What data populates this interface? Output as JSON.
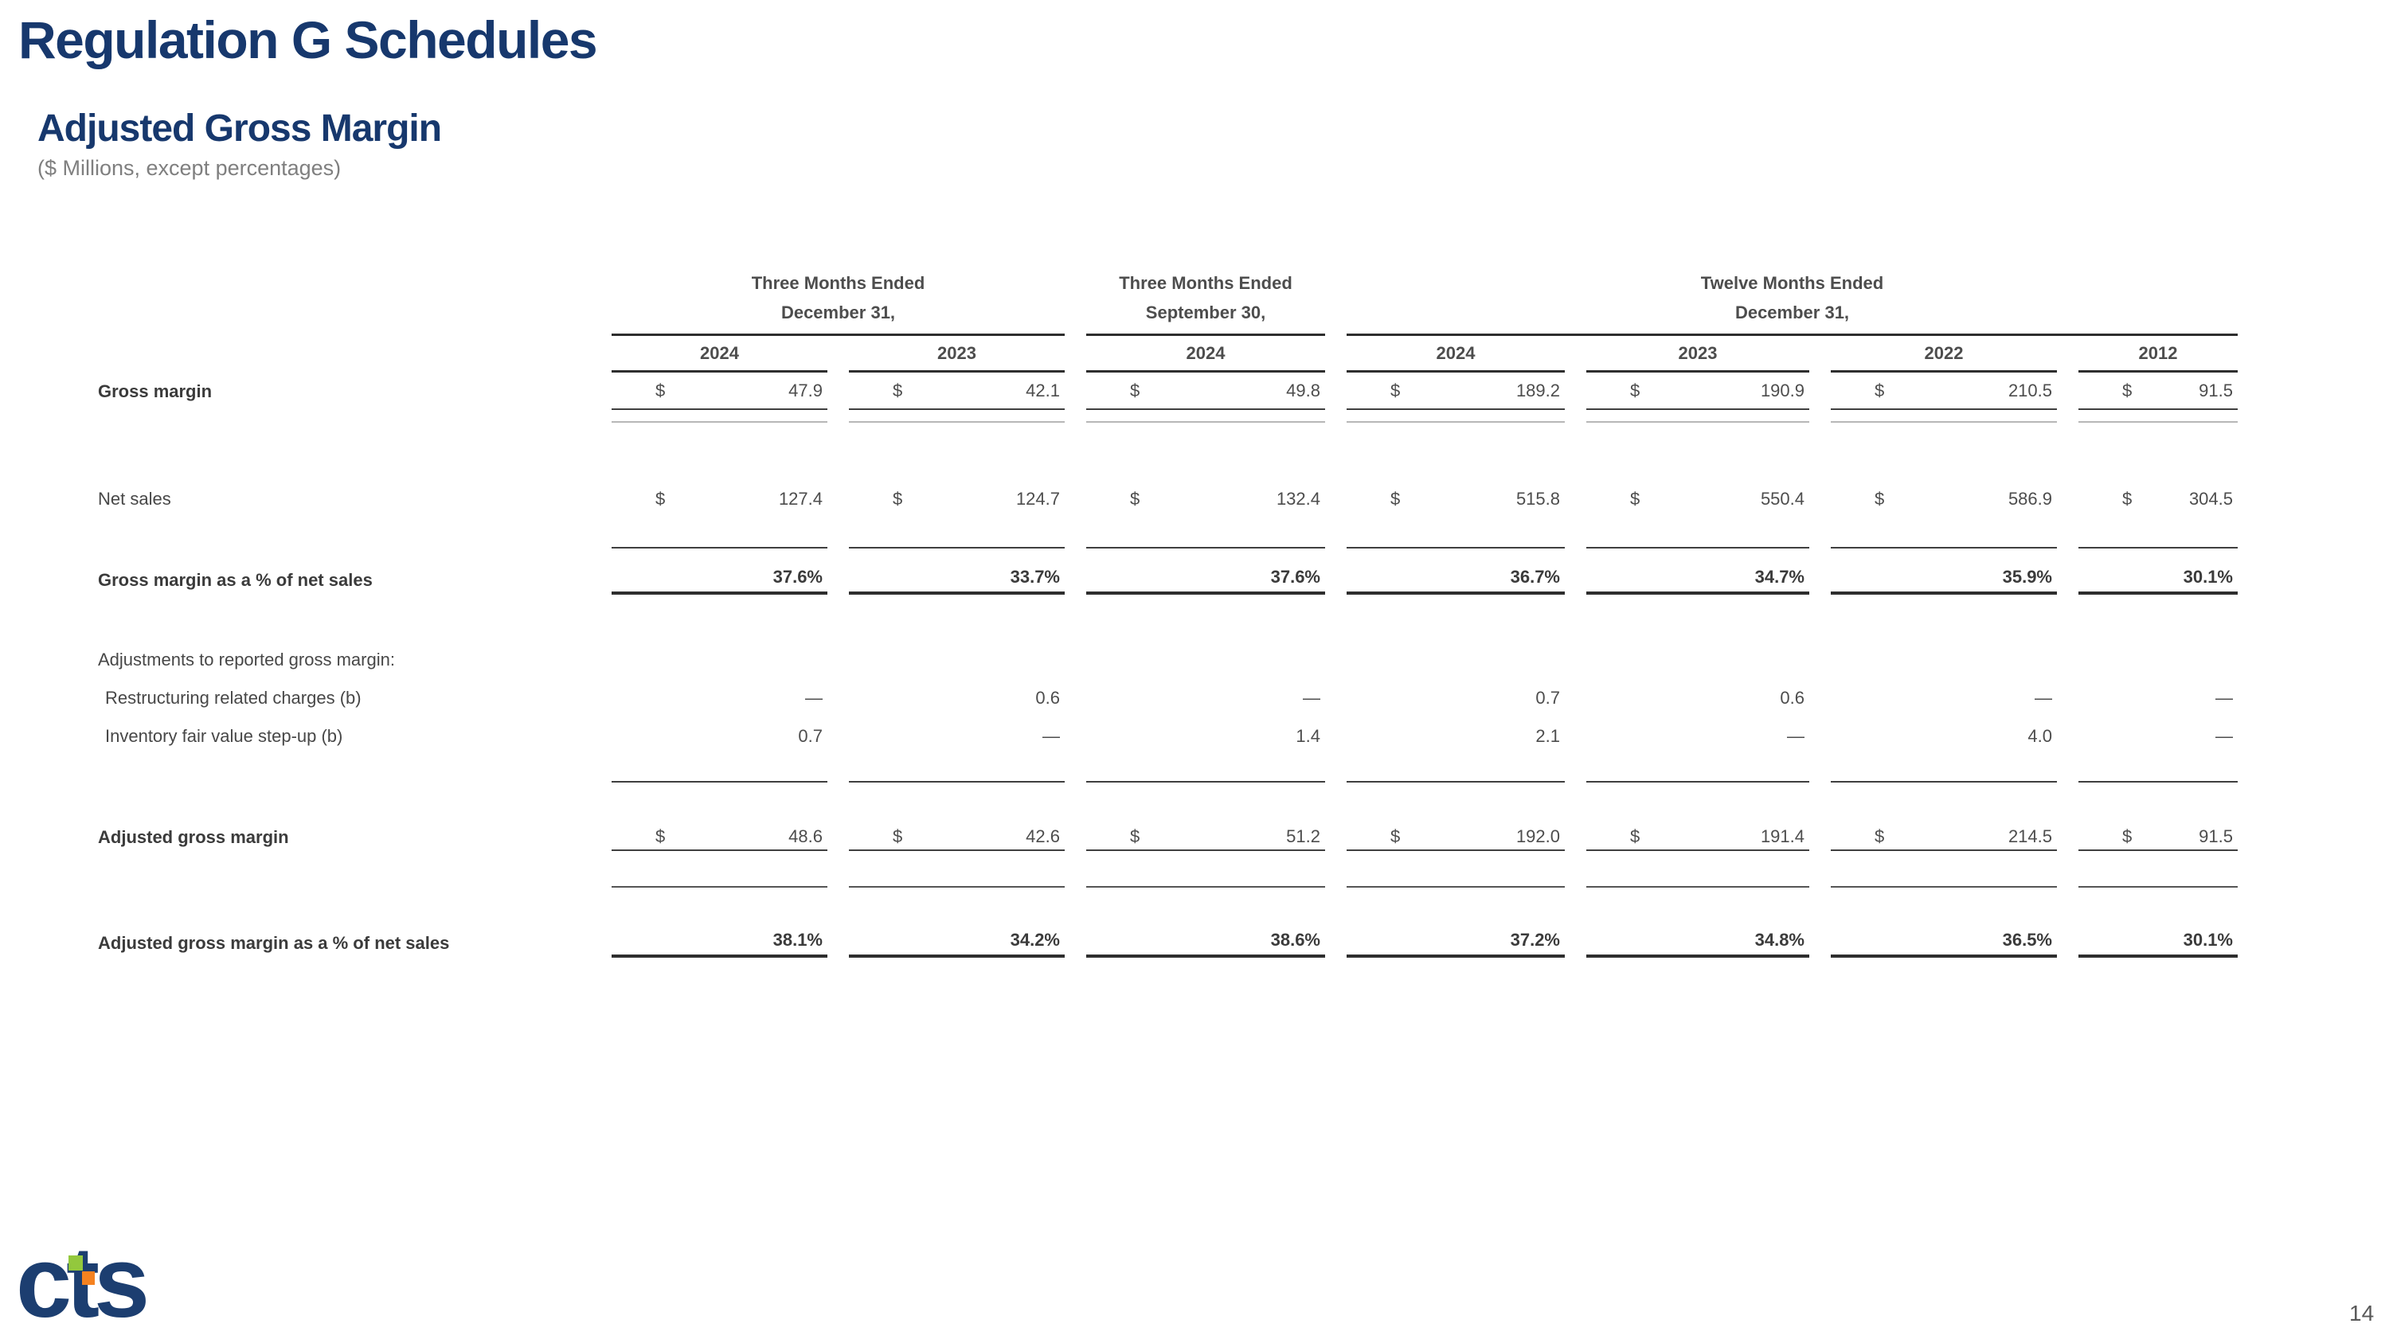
{
  "page": {
    "title": "Regulation G Schedules",
    "subtitle": "Adjusted Gross Margin",
    "note": "($ Millions, except percentages)",
    "page_number": "14",
    "logo_text": "cts",
    "logo_colors": {
      "navy": "#1c3e70",
      "green": "#93c83d",
      "orange": "#f58220"
    },
    "accent_color": "#17386d"
  },
  "table": {
    "groups": [
      {
        "line1": "Three Months Ended",
        "line2": "December 31,"
      },
      {
        "line1": "Three Months Ended",
        "line2": "September 30,"
      },
      {
        "line1": "Twelve Months Ended",
        "line2": "December 31,"
      }
    ],
    "years": [
      "2024",
      "2023",
      "2024",
      "2024",
      "2023",
      "2022",
      "2012"
    ],
    "rows": [
      {
        "label": "Gross margin",
        "dollar": "$",
        "values": [
          "47.9",
          "42.1",
          "49.8",
          "189.2",
          "190.9",
          "210.5",
          "91.5"
        ]
      },
      {
        "label": "Net sales",
        "dollar": "$",
        "values": [
          "127.4",
          "124.7",
          "132.4",
          "515.8",
          "550.4",
          "586.9",
          "304.5"
        ]
      },
      {
        "label": "Gross margin as a % of net sales",
        "values": [
          "37.6%",
          "33.7%",
          "37.6%",
          "36.7%",
          "34.7%",
          "35.9%",
          "30.1%"
        ]
      },
      {
        "label": "Adjustments to reported gross margin:",
        "values": [
          "",
          "",
          "",
          "",
          "",
          "",
          ""
        ]
      },
      {
        "label": "Restructuring related charges (b)",
        "values": [
          "—",
          "0.6",
          "—",
          "0.7",
          "0.6",
          "—",
          "—"
        ]
      },
      {
        "label": "Inventory fair value step-up (b)",
        "values": [
          "0.7",
          "—",
          "1.4",
          "2.1",
          "—",
          "4.0",
          "—"
        ]
      },
      {
        "label": "Adjusted gross margin",
        "dollar": "$",
        "values": [
          "48.6",
          "42.6",
          "51.2",
          "192.0",
          "191.4",
          "214.5",
          "91.5"
        ]
      },
      {
        "label": "Adjusted gross margin as a % of net sales",
        "values": [
          "38.1%",
          "34.2%",
          "38.6%",
          "37.2%",
          "34.8%",
          "36.5%",
          "30.1%"
        ]
      }
    ]
  }
}
